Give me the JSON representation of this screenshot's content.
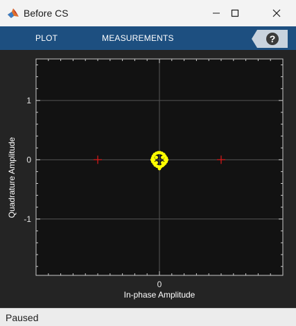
{
  "window": {
    "title": "Before CS",
    "app_icon": "matlab-logo-icon",
    "controls": [
      "minimize-icon",
      "maximize-icon",
      "close-icon"
    ]
  },
  "toolstrip": {
    "tabs": [
      {
        "label": "PLOT"
      },
      {
        "label": "MEASUREMENTS"
      }
    ],
    "help_icon": "help-question-icon",
    "background": "#1d4f80"
  },
  "status": {
    "text": "Paused"
  },
  "chart_data": {
    "type": "scatter",
    "title": "",
    "xlabel": "In-phase Amplitude",
    "ylabel": "Quadrature Amplitude",
    "xlim": [
      -2,
      2
    ],
    "ylim": [
      -1.95,
      1.7
    ],
    "x_ticks": [
      "0"
    ],
    "y_ticks": [
      "1",
      "0",
      "-1"
    ],
    "grid": true,
    "background": "#121212",
    "reference_points": {
      "color": "#d11a1a",
      "marker": "+",
      "points": [
        [
          -1,
          0
        ],
        [
          1,
          0
        ]
      ]
    },
    "series": [
      {
        "color": "#ffff00",
        "marker": "dot",
        "points": [
          [
            -0.08,
            0.09
          ],
          [
            -0.05,
            0.11
          ],
          [
            -0.02,
            0.12
          ],
          [
            0.01,
            0.12
          ],
          [
            0.04,
            0.11
          ],
          [
            0.07,
            0.09
          ],
          [
            -0.1,
            0.06
          ],
          [
            0.09,
            0.06
          ],
          [
            -0.11,
            0.03
          ],
          [
            0.11,
            0.03
          ],
          [
            -0.12,
            0.0
          ],
          [
            -0.09,
            0.0
          ],
          [
            0.09,
            0.0
          ],
          [
            0.12,
            0.0
          ],
          [
            -0.11,
            -0.03
          ],
          [
            0.11,
            -0.03
          ],
          [
            -0.09,
            -0.06
          ],
          [
            0.09,
            -0.06
          ],
          [
            -0.07,
            -0.09
          ],
          [
            -0.04,
            -0.11
          ],
          [
            -0.01,
            -0.12
          ],
          [
            0.02,
            -0.12
          ],
          [
            0.05,
            -0.1
          ],
          [
            0.07,
            -0.08
          ],
          [
            -0.05,
            0.04
          ],
          [
            0.05,
            0.04
          ],
          [
            -0.05,
            -0.05
          ],
          [
            0.05,
            -0.05
          ],
          [
            0.0,
            -0.15
          ]
        ]
      }
    ]
  }
}
